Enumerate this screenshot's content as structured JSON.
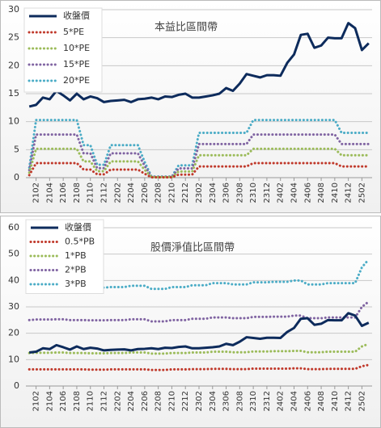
{
  "chart_data": [
    {
      "type": "line",
      "title": "本益比區間帶",
      "categories": [
        null,
        "2102",
        null,
        "2104",
        null,
        "2106",
        null,
        "2108",
        null,
        "2110",
        null,
        "2112",
        null,
        "2202",
        null,
        "2204",
        null,
        "2206",
        null,
        "2208",
        null,
        "2210",
        null,
        "2212",
        null,
        "2302",
        null,
        "2304",
        null,
        "2306",
        null,
        "2308",
        null,
        "2310",
        null,
        "2312",
        null,
        "2402",
        null,
        "2404",
        null,
        "2406",
        null,
        "2408",
        null,
        "2410",
        null,
        "2412",
        null,
        "2502",
        null
      ],
      "ylim": [
        0,
        30
      ],
      "yticks": [
        0,
        5,
        10,
        15,
        20,
        25,
        30
      ],
      "grid": true,
      "legend": "upper left",
      "series": [
        {
          "name": "收盤價",
          "color": "#0d2b5c",
          "values": [
            12.7,
            13,
            14.3,
            14,
            15.5,
            14.7,
            13.8,
            15,
            14,
            14.5,
            14.2,
            13.5,
            13.7,
            13.8,
            13.9,
            13.5,
            14,
            14.1,
            14.3,
            14,
            14.5,
            14.4,
            14.8,
            15,
            14.3,
            14.3,
            14.5,
            14.7,
            15,
            16,
            15.5,
            16.8,
            18.5,
            18.2,
            17.9,
            18.3,
            18.3,
            18.2,
            20.5,
            22,
            25.5,
            25.7,
            23.2,
            23.6,
            25,
            24.9,
            24.9,
            27.6,
            26.7,
            22.8,
            24
          ]
        },
        {
          "name": "5*PE",
          "color": "#c0392b",
          "values": [
            0.45,
            2.6,
            2.6,
            2.6,
            2.6,
            2.6,
            2.6,
            2.6,
            1.45,
            1.45,
            0.6,
            0.6,
            1.45,
            1.45,
            1.45,
            1.45,
            1.45,
            0.7,
            0.05,
            0.05,
            0.05,
            0.05,
            0.55,
            0.55,
            0.55,
            2,
            2,
            2,
            2,
            2,
            2,
            2,
            2,
            2.6,
            2.6,
            2.6,
            2.6,
            2.6,
            2.6,
            2.6,
            2.6,
            2.6,
            2.6,
            2.6,
            2.6,
            2.6,
            2,
            2,
            2,
            2,
            2
          ]
        },
        {
          "name": "10*PE",
          "color": "#9bbb59",
          "values": [
            0.9,
            5.15,
            5.15,
            5.15,
            5.15,
            5.15,
            5.15,
            5.15,
            2.9,
            2.9,
            1.15,
            1.15,
            2.9,
            2.9,
            2.9,
            2.9,
            2.9,
            1.4,
            0.1,
            0.1,
            0.1,
            0.1,
            1.1,
            1.1,
            1.1,
            4,
            4,
            4,
            4,
            4,
            4,
            4,
            4,
            5.15,
            5.15,
            5.15,
            5.15,
            5.15,
            5.15,
            5.15,
            5.15,
            5.15,
            5.15,
            5.15,
            5.15,
            5.15,
            4,
            4,
            4,
            4,
            4
          ]
        },
        {
          "name": "15*PE",
          "color": "#8064a2",
          "values": [
            1.35,
            7.7,
            7.7,
            7.7,
            7.7,
            7.7,
            7.7,
            7.7,
            4.35,
            4.35,
            1.7,
            1.7,
            4.35,
            4.35,
            4.35,
            4.35,
            4.35,
            2.1,
            0.15,
            0.15,
            0.15,
            0.15,
            1.65,
            1.65,
            1.65,
            6,
            6,
            6,
            6,
            6,
            6,
            6,
            6,
            7.7,
            7.7,
            7.7,
            7.7,
            7.7,
            7.7,
            7.7,
            7.7,
            7.7,
            7.7,
            7.7,
            7.7,
            7.7,
            6,
            6,
            6,
            6,
            6
          ]
        },
        {
          "name": "20*PE",
          "color": "#4bacc6",
          "values": [
            1.8,
            10.3,
            10.3,
            10.3,
            10.3,
            10.3,
            10.3,
            10.3,
            5.8,
            5.8,
            2.3,
            2.3,
            5.8,
            5.8,
            5.8,
            5.8,
            5.8,
            2.8,
            0.2,
            0.2,
            0.2,
            0.2,
            2.2,
            2.2,
            2.2,
            8,
            8,
            8,
            8,
            8,
            8,
            8,
            8,
            10.3,
            10.3,
            10.3,
            10.3,
            10.3,
            10.3,
            10.3,
            10.3,
            10.3,
            10.3,
            10.3,
            10.3,
            10.3,
            8,
            8,
            8,
            8,
            8
          ]
        }
      ]
    },
    {
      "type": "line",
      "title": "股價淨值比區間帶",
      "categories": [
        null,
        "2102",
        null,
        "2104",
        null,
        "2106",
        null,
        "2108",
        null,
        "2110",
        null,
        "2112",
        null,
        "2202",
        null,
        "2204",
        null,
        "2206",
        null,
        "2208",
        null,
        "2210",
        null,
        "2212",
        null,
        "2302",
        null,
        "2304",
        null,
        "2306",
        null,
        "2308",
        null,
        "2310",
        null,
        "2312",
        null,
        "2402",
        null,
        "2404",
        null,
        "2406",
        null,
        "2408",
        null,
        "2410",
        null,
        "2412",
        null,
        "2502",
        null
      ],
      "ylim": [
        0,
        60
      ],
      "yticks": [
        0,
        10,
        20,
        30,
        40,
        50,
        60
      ],
      "grid": true,
      "legend": "upper left",
      "series": [
        {
          "name": "收盤價",
          "color": "#0d2b5c",
          "values": [
            12.7,
            13,
            14.3,
            14,
            15.5,
            14.7,
            13.8,
            15,
            14,
            14.5,
            14.2,
            13.5,
            13.7,
            13.8,
            13.9,
            13.5,
            14,
            14.1,
            14.3,
            14,
            14.5,
            14.4,
            14.8,
            15,
            14.3,
            14.3,
            14.5,
            14.7,
            15,
            16,
            15.5,
            16.8,
            18.5,
            18.2,
            17.9,
            18.3,
            18.3,
            18.2,
            20.5,
            22,
            25.5,
            25.7,
            23.2,
            23.6,
            25,
            24.9,
            24.9,
            27.6,
            26.7,
            22.8,
            24
          ]
        },
        {
          "name": "0.5*PB",
          "color": "#c0392b",
          "values": [
            6.3,
            6.3,
            6.3,
            6.3,
            6.3,
            6.3,
            6.3,
            6.3,
            6.3,
            6.2,
            6.2,
            6.2,
            6.3,
            6.3,
            6.3,
            6.3,
            6.3,
            6.3,
            6.1,
            6.1,
            6.1,
            6.3,
            6.3,
            6.3,
            6.4,
            6.4,
            6.4,
            6.5,
            6.5,
            6.5,
            6.4,
            6.4,
            6.4,
            6.6,
            6.6,
            6.6,
            6.6,
            6.6,
            6.6,
            6.7,
            6.7,
            6.4,
            6.4,
            6.4,
            6.5,
            6.5,
            6.5,
            6.5,
            6.5,
            7.5,
            8
          ]
        },
        {
          "name": "1*PB",
          "color": "#9bbb59",
          "values": [
            12.5,
            12.6,
            12.6,
            12.6,
            12.7,
            12.7,
            12.5,
            12.5,
            12.5,
            12.4,
            12.4,
            12.4,
            12.5,
            12.5,
            12.5,
            12.7,
            12.7,
            12.7,
            12.3,
            12.3,
            12.3,
            12.5,
            12.5,
            12.5,
            12.7,
            12.7,
            12.7,
            13,
            13,
            13,
            12.8,
            12.8,
            12.8,
            13.1,
            13.1,
            13.1,
            13.2,
            13.2,
            13.2,
            13.3,
            13.3,
            12.8,
            12.8,
            12.8,
            13,
            13,
            13,
            13,
            13,
            15,
            16
          ]
        },
        {
          "name": "2*PB",
          "color": "#8064a2",
          "values": [
            25,
            25.2,
            25.2,
            25.2,
            25.3,
            25.3,
            25,
            25,
            25,
            24.9,
            24.9,
            24.9,
            25,
            25,
            25,
            25.3,
            25.3,
            25.3,
            24.5,
            24.5,
            24.5,
            25,
            25,
            25,
            25.5,
            25.5,
            25.5,
            26,
            26,
            26,
            25.7,
            25.7,
            25.7,
            26.2,
            26.2,
            26.2,
            26.3,
            26.3,
            26.3,
            26.7,
            26.7,
            25.7,
            25.7,
            25.7,
            26,
            26,
            26,
            26,
            26,
            30,
            32
          ]
        },
        {
          "name": "3*PB",
          "color": "#4bacc6",
          "values": [
            37.5,
            37.8,
            37.8,
            37.8,
            38,
            38,
            37.5,
            37.5,
            37.5,
            37.3,
            37.3,
            37.3,
            37.5,
            37.5,
            37.5,
            38,
            38,
            38,
            36.8,
            36.8,
            36.8,
            37.5,
            37.5,
            37.5,
            38.2,
            38.2,
            38.2,
            39,
            39,
            39,
            38.5,
            38.5,
            38.5,
            39.3,
            39.3,
            39.3,
            39.5,
            39.5,
            39.5,
            40,
            40,
            38.5,
            38.5,
            38.5,
            39,
            39,
            39,
            39,
            39,
            45,
            48
          ]
        }
      ]
    }
  ]
}
